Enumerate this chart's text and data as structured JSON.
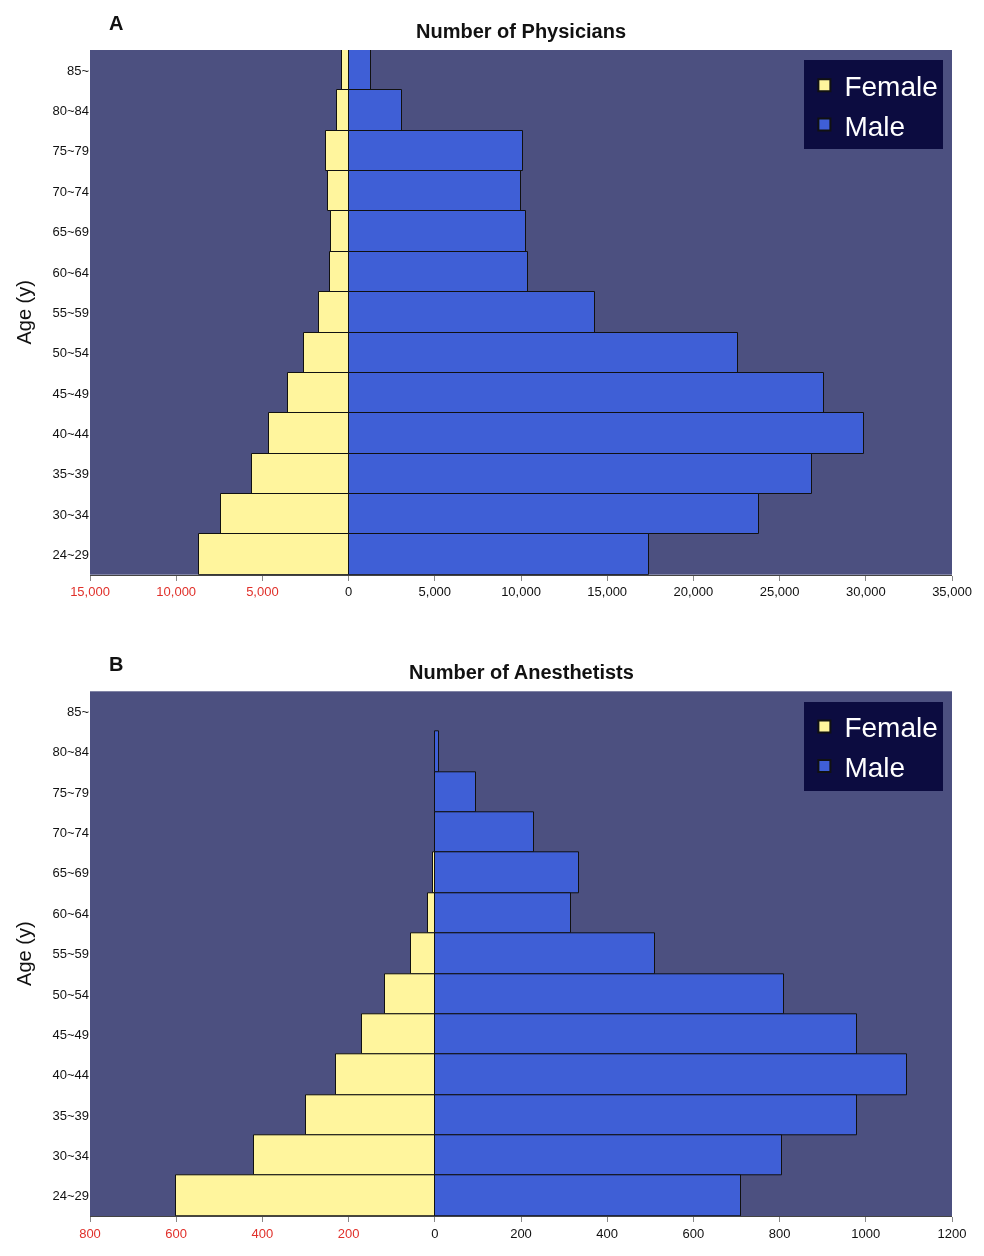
{
  "chart_data": [
    {
      "type": "bar",
      "orientation": "horizontal",
      "stacked": true,
      "title": "Number of Physicians",
      "ylabel": "Age (y)",
      "annotations": [
        "A"
      ],
      "categories": [
        "85~",
        "80~84",
        "75~79",
        "70~74",
        "65~69",
        "60~64",
        "55~59",
        "50~54",
        "45~49",
        "40~44",
        "35~39",
        "30~34",
        "24~29"
      ],
      "series": [
        {
          "name": "Female",
          "color": "#fff59d",
          "values": [
            -400,
            -700,
            -1300,
            -1200,
            -1000,
            -1100,
            -1700,
            -2600,
            -3500,
            -4600,
            -5600,
            -7400,
            -8700
          ]
        },
        {
          "name": "Male",
          "color": "#3f5fd6",
          "values": [
            1300,
            3100,
            10100,
            10000,
            10300,
            10400,
            14300,
            22600,
            27600,
            29900,
            26900,
            23800,
            17400
          ]
        }
      ],
      "xlim": [
        -15000,
        35000
      ],
      "xticks": [
        {
          "value": -15000,
          "label": "15,000"
        },
        {
          "value": -10000,
          "label": "10,000"
        },
        {
          "value": -5000,
          "label": "5,000"
        },
        0,
        {
          "value": 5000,
          "label": "5,000"
        },
        {
          "value": 10000,
          "label": "10,000"
        },
        {
          "value": 15000,
          "label": "15,000"
        },
        {
          "value": 20000,
          "label": "20,000"
        },
        {
          "value": 25000,
          "label": "25,000"
        },
        {
          "value": 30000,
          "label": "30,000"
        },
        {
          "value": 35000,
          "label": "35,000"
        }
      ],
      "legend": "top right",
      "grid": false
    },
    {
      "type": "bar",
      "orientation": "horizontal",
      "stacked": true,
      "title": "Number of Anesthetists",
      "ylabel": "Age (y)",
      "annotations": [
        "B"
      ],
      "categories": [
        "85~",
        "80~84",
        "75~79",
        "70~74",
        "65~69",
        "60~64",
        "55~59",
        "50~54",
        "45~49",
        "40~44",
        "35~39",
        "30~34",
        "24~29"
      ],
      "series": [
        {
          "name": "Female",
          "color": "#fff59d",
          "values": [
            0,
            0,
            0,
            null,
            -5,
            -15,
            -55,
            -115,
            -170,
            -230,
            -300,
            -420,
            -600
          ]
        },
        {
          "name": "Male",
          "color": "#3f5fd6",
          "values": [
            0,
            10,
            95,
            230,
            335,
            315,
            510,
            810,
            980,
            1095,
            980,
            805,
            710
          ]
        }
      ],
      "xlim": [
        -800,
        1200
      ],
      "xticks": [
        {
          "value": -800,
          "label": "800"
        },
        {
          "value": -600,
          "label": "600"
        },
        {
          "value": -400,
          "label": "400"
        },
        {
          "value": -200,
          "label": "200"
        },
        0,
        200,
        400,
        600,
        800,
        1000,
        1200
      ],
      "legend": "top right",
      "grid": false
    }
  ]
}
